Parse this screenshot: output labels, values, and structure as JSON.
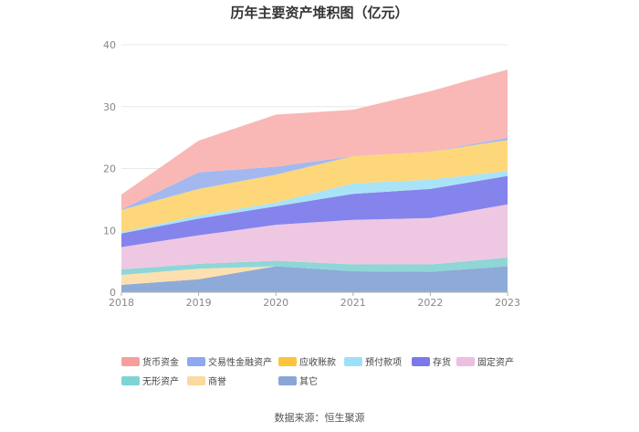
{
  "chart_data": {
    "type": "area",
    "stacked": true,
    "title": "历年主要资产堆积图（亿元）",
    "x": [
      "2018",
      "2019",
      "2020",
      "2021",
      "2022",
      "2023"
    ],
    "ylim": [
      0,
      40
    ],
    "yticks": [
      0,
      10,
      20,
      30,
      40
    ],
    "grid": true,
    "legend_position": "bottom",
    "series": [
      {
        "name": "其它",
        "color": "#8eaad8",
        "values": [
          1.2,
          2.1,
          4.2,
          3.4,
          3.3,
          4.2
        ]
      },
      {
        "name": "商誉",
        "color": "#fde0b0",
        "values": [
          1.6,
          1.7,
          0.0,
          0.0,
          0.0,
          0.0
        ]
      },
      {
        "name": "无形资产",
        "color": "#8fd6d6",
        "values": [
          0.9,
          0.8,
          0.9,
          1.1,
          1.2,
          1.4
        ]
      },
      {
        "name": "固定资产",
        "color": "#eec8e3",
        "values": [
          3.6,
          4.6,
          5.8,
          7.2,
          7.5,
          8.6
        ]
      },
      {
        "name": "存货",
        "color": "#8583ec",
        "values": [
          2.2,
          2.7,
          3.0,
          4.2,
          4.7,
          4.6
        ]
      },
      {
        "name": "预付款项",
        "color": "#a9e3f8",
        "values": [
          0.2,
          0.5,
          0.6,
          1.7,
          1.5,
          0.8
        ]
      },
      {
        "name": "应收账款",
        "color": "#fdd77a",
        "values": [
          3.6,
          4.3,
          4.5,
          4.4,
          4.5,
          5.0
        ]
      },
      {
        "name": "交易性金融资产",
        "color": "#a4b8f0",
        "values": [
          0.1,
          2.7,
          1.3,
          0.0,
          0.0,
          0.4
        ]
      },
      {
        "name": "货币资金",
        "color": "#f9b8b5",
        "values": [
          2.4,
          5.1,
          8.4,
          7.5,
          9.8,
          11.0
        ]
      }
    ],
    "legend_order": [
      "货币资金",
      "交易性金融资产",
      "应收账款",
      "预付款项",
      "存货",
      "固定资产",
      "无形资产",
      "商誉",
      "其它"
    ],
    "legend_swatch_colors": {
      "货币资金": "#f6a09c",
      "交易性金融资产": "#8ea8f2",
      "应收账款": "#fcc53a",
      "预付款项": "#9ee0f8",
      "存货": "#7b78ec",
      "固定资产": "#ebbfe0",
      "无形资产": "#7dd4d4",
      "商誉": "#fcd99c",
      "其它": "#8aa6d6"
    }
  },
  "source_note": "数据来源：恒生聚源"
}
